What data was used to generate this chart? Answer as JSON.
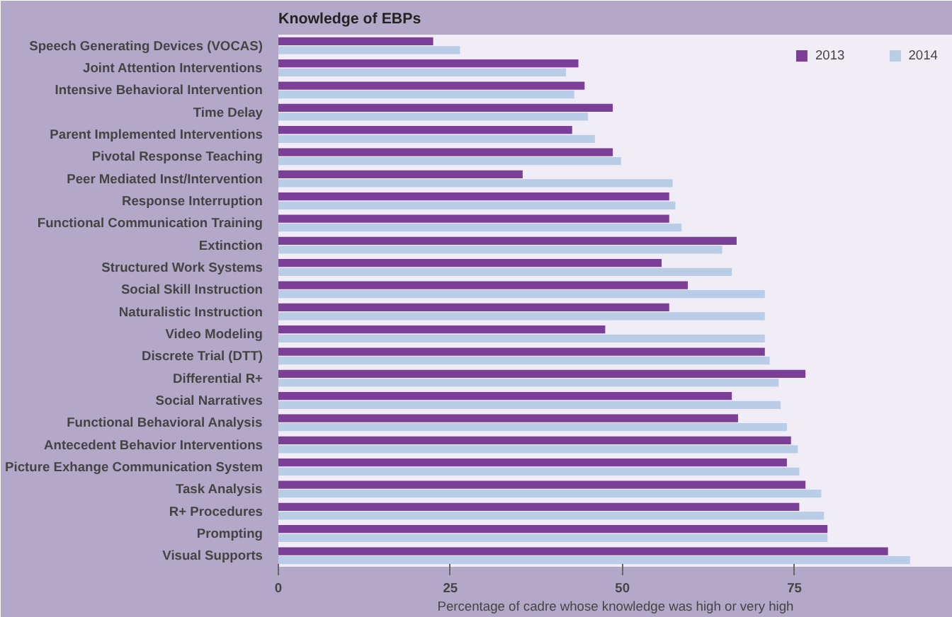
{
  "chart_data": {
    "type": "bar",
    "orientation": "horizontal",
    "title": "Knowledge of EBPs",
    "xlabel": "Percentage of cadre whose knowledge was high or very high",
    "categories": [
      "Speech Generating Devices (VOCAS)",
      "Joint Attention Interventions",
      "Intensive Behavioral Intervention",
      "Time Delay",
      "Parent Implemented Interventions",
      "Pivotal Response Teaching",
      "Peer Mediated Inst/Intervention",
      "Response Interruption",
      "Functional Communication Training",
      "Extinction",
      "Structured Work Systems",
      "Social Skill Instruction",
      "Naturalistic Instruction",
      "Video Modeling",
      "Discrete Trial (DTT)",
      "Differential R+",
      "Social Narratives",
      "Functional Behavioral Analysis",
      "Antecedent Behavior Interventions",
      "Picture Exhange Communication System",
      "Task Analysis",
      "R+ Procedures",
      "Prompting",
      "Visual Supports"
    ],
    "series": [
      {
        "name": "2013",
        "color": "#7b3f97",
        "values": [
          22.5,
          43.6,
          44.5,
          48.6,
          42.7,
          48.6,
          35.5,
          56.8,
          56.8,
          66.6,
          55.7,
          59.5,
          56.8,
          47.5,
          70.7,
          76.6,
          65.9,
          66.8,
          74.5,
          73.9,
          76.6,
          75.7,
          79.8,
          88.6
        ]
      },
      {
        "name": "2014",
        "color": "#b9cde6",
        "values": [
          26.4,
          41.8,
          43,
          45,
          46,
          49.8,
          57.3,
          57.7,
          58.6,
          64.5,
          65.9,
          70.7,
          70.7,
          70.7,
          71.4,
          72.7,
          73,
          73.9,
          75.5,
          75.7,
          78.9,
          79.3,
          79.8,
          91.8
        ]
      }
    ],
    "xlim": [
      0,
      98
    ],
    "xticks": [
      0,
      25,
      50,
      75
    ],
    "grid": false,
    "legend": "top right"
  }
}
